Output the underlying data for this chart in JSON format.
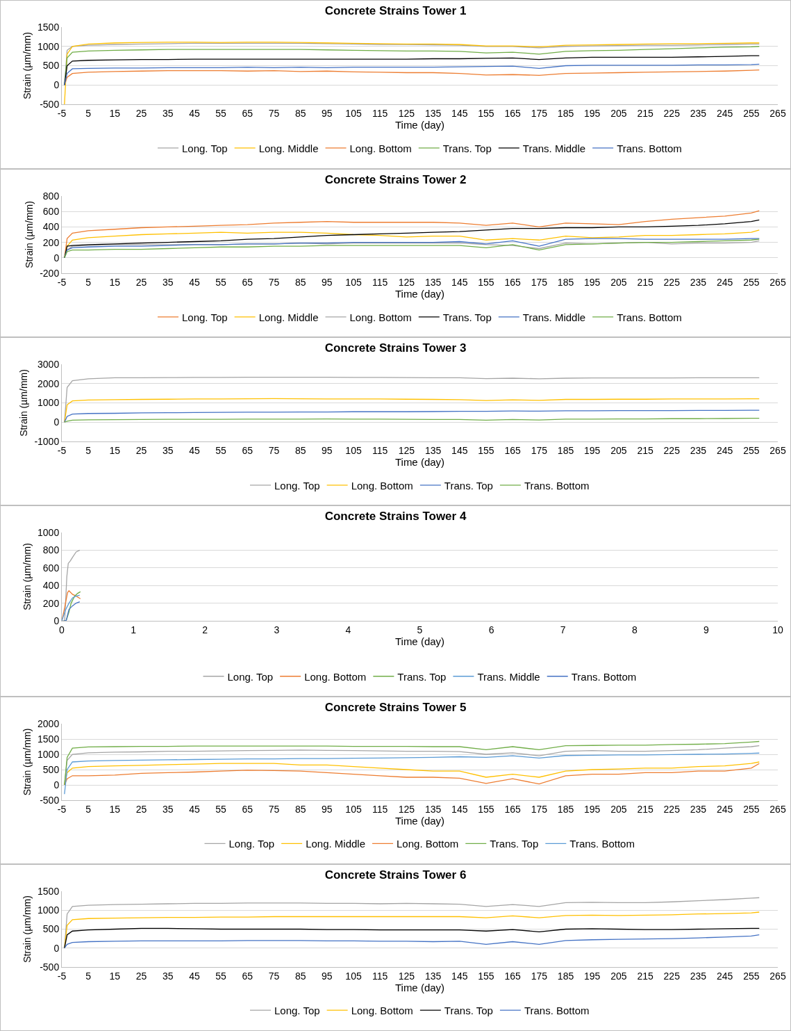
{
  "chart_data": [
    {
      "type": "line",
      "title": "Concrete Strains Tower 1",
      "xlabel": "Time (day)",
      "ylabel": "Strain (µm/mm)",
      "grid": "y",
      "legend": "bottom",
      "marker": "none",
      "line_style": "solid",
      "x": [
        -4,
        -3,
        -1,
        5,
        15,
        25,
        35,
        45,
        55,
        65,
        75,
        85,
        95,
        105,
        115,
        125,
        135,
        145,
        155,
        165,
        175,
        185,
        195,
        205,
        215,
        225,
        235,
        245,
        255,
        258
      ],
      "xlim": [
        -5,
        265
      ],
      "xticks": [
        -5,
        5,
        15,
        25,
        35,
        45,
        55,
        65,
        75,
        85,
        95,
        105,
        115,
        125,
        135,
        145,
        155,
        165,
        175,
        185,
        195,
        205,
        215,
        225,
        235,
        245,
        255,
        265
      ],
      "ylim": [
        -500,
        1500
      ],
      "yticks": [
        -500,
        0,
        500,
        1000,
        1500
      ],
      "series": [
        {
          "name": "Long. Top",
          "color": "#a5a5a5",
          "values": [
            0,
            900,
            1000,
            1030,
            1050,
            1060,
            1070,
            1080,
            1080,
            1080,
            1080,
            1080,
            1070,
            1060,
            1050,
            1050,
            1040,
            1030,
            1000,
            1000,
            960,
            1000,
            1010,
            1020,
            1030,
            1030,
            1040,
            1050,
            1060,
            1060
          ]
        },
        {
          "name": "Long. Middle",
          "color": "#ffc000",
          "values": [
            -500,
            800,
            1000,
            1060,
            1090,
            1100,
            1110,
            1110,
            1100,
            1110,
            1110,
            1100,
            1090,
            1080,
            1070,
            1060,
            1060,
            1050,
            1010,
            1010,
            990,
            1030,
            1040,
            1050,
            1060,
            1070,
            1070,
            1080,
            1090,
            1090
          ]
        },
        {
          "name": "Long. Bottom",
          "color": "#ed7d31",
          "values": [
            0,
            200,
            300,
            330,
            350,
            360,
            370,
            370,
            370,
            360,
            370,
            350,
            360,
            340,
            330,
            320,
            320,
            300,
            260,
            270,
            250,
            300,
            310,
            320,
            330,
            340,
            350,
            360,
            380,
            390
          ]
        },
        {
          "name": "Trans. Top",
          "color": "#70ad47",
          "values": [
            0,
            700,
            850,
            880,
            900,
            910,
            920,
            920,
            920,
            920,
            920,
            920,
            910,
            900,
            890,
            880,
            880,
            870,
            830,
            850,
            800,
            870,
            890,
            900,
            920,
            940,
            960,
            980,
            990,
            1000
          ]
        },
        {
          "name": "Trans. Middle",
          "color": "#000000",
          "values": [
            0,
            500,
            620,
            640,
            650,
            660,
            660,
            670,
            670,
            670,
            670,
            670,
            670,
            670,
            670,
            670,
            680,
            680,
            690,
            700,
            660,
            700,
            720,
            720,
            720,
            720,
            730,
            740,
            760,
            760
          ]
        },
        {
          "name": "Trans. Bottom",
          "color": "#4472c4",
          "values": [
            0,
            300,
            420,
            430,
            440,
            440,
            450,
            450,
            450,
            460,
            450,
            460,
            450,
            460,
            460,
            460,
            460,
            470,
            480,
            490,
            430,
            500,
            510,
            510,
            510,
            510,
            520,
            520,
            530,
            540
          ]
        }
      ]
    },
    {
      "type": "line",
      "title": "Concrete Strains Tower 2",
      "xlabel": "Time (day)",
      "ylabel": "Strain (µm/mm)",
      "grid": "y",
      "legend": "bottom",
      "marker": "none",
      "line_style": "solid",
      "x": [
        -4,
        -3,
        -1,
        5,
        15,
        25,
        35,
        45,
        55,
        65,
        75,
        85,
        95,
        105,
        115,
        125,
        135,
        145,
        155,
        165,
        175,
        185,
        195,
        205,
        215,
        225,
        235,
        245,
        255,
        258
      ],
      "xlim": [
        -5,
        265
      ],
      "xticks": [
        -5,
        5,
        15,
        25,
        35,
        45,
        55,
        65,
        75,
        85,
        95,
        105,
        115,
        125,
        135,
        145,
        155,
        165,
        175,
        185,
        195,
        205,
        215,
        225,
        235,
        245,
        255,
        265
      ],
      "ylim": [
        -200,
        800
      ],
      "yticks": [
        -200,
        0,
        200,
        400,
        600,
        800
      ],
      "series": [
        {
          "name": "Long. Top",
          "color": "#ed7d31",
          "values": [
            0,
            250,
            320,
            350,
            370,
            390,
            400,
            410,
            420,
            430,
            450,
            460,
            470,
            460,
            460,
            460,
            460,
            450,
            420,
            450,
            400,
            450,
            440,
            430,
            470,
            500,
            520,
            540,
            580,
            610
          ]
        },
        {
          "name": "Long. Middle",
          "color": "#ffc000",
          "values": [
            0,
            150,
            230,
            260,
            280,
            300,
            310,
            320,
            330,
            320,
            330,
            330,
            320,
            300,
            290,
            270,
            280,
            280,
            230,
            250,
            230,
            280,
            260,
            270,
            290,
            290,
            300,
            310,
            330,
            360
          ]
        },
        {
          "name": "Long. Bottom",
          "color": "#a5a5a5",
          "values": [
            0,
            100,
            150,
            160,
            170,
            170,
            170,
            170,
            170,
            180,
            180,
            190,
            180,
            190,
            190,
            190,
            190,
            190,
            170,
            160,
            120,
            190,
            180,
            190,
            200,
            180,
            190,
            190,
            200,
            220
          ]
        },
        {
          "name": "Trans. Top",
          "color": "#000000",
          "values": [
            0,
            150,
            160,
            170,
            180,
            190,
            200,
            210,
            220,
            240,
            250,
            270,
            290,
            300,
            310,
            320,
            330,
            340,
            360,
            380,
            380,
            390,
            390,
            400,
            400,
            410,
            420,
            440,
            470,
            490
          ]
        },
        {
          "name": "Trans. Middle",
          "color": "#4472c4",
          "values": [
            0,
            100,
            130,
            140,
            150,
            150,
            160,
            170,
            170,
            180,
            180,
            190,
            190,
            200,
            200,
            200,
            200,
            210,
            180,
            220,
            150,
            240,
            250,
            250,
            240,
            240,
            240,
            240,
            250,
            250
          ]
        },
        {
          "name": "Trans. Bottom",
          "color": "#70ad47",
          "values": [
            0,
            80,
            100,
            100,
            110,
            110,
            120,
            130,
            140,
            140,
            150,
            150,
            160,
            160,
            160,
            160,
            160,
            160,
            130,
            170,
            100,
            170,
            180,
            190,
            200,
            200,
            210,
            220,
            230,
            240
          ]
        }
      ]
    },
    {
      "type": "line",
      "title": "Concrete Strains Tower 3",
      "xlabel": "Time (day)",
      "ylabel": "Strain (µm/mm)",
      "grid": "y",
      "legend": "bottom",
      "marker": "none",
      "line_style": "solid",
      "x": [
        -4,
        -3,
        -1,
        5,
        15,
        25,
        35,
        45,
        55,
        65,
        75,
        85,
        95,
        105,
        115,
        125,
        135,
        145,
        155,
        165,
        175,
        185,
        195,
        205,
        215,
        225,
        235,
        245,
        255,
        258
      ],
      "xlim": [
        -5,
        265
      ],
      "xticks": [
        -5,
        5,
        15,
        25,
        35,
        45,
        55,
        65,
        75,
        85,
        95,
        105,
        115,
        125,
        135,
        145,
        155,
        165,
        175,
        185,
        195,
        205,
        215,
        225,
        235,
        245,
        255,
        265
      ],
      "ylim": [
        -1000,
        3000
      ],
      "yticks": [
        -1000,
        0,
        1000,
        2000,
        3000
      ],
      "series": [
        {
          "name": "Long. Top",
          "color": "#a5a5a5",
          "values": [
            0,
            1800,
            2150,
            2250,
            2300,
            2300,
            2310,
            2320,
            2320,
            2330,
            2330,
            2330,
            2330,
            2320,
            2320,
            2310,
            2300,
            2300,
            2260,
            2280,
            2250,
            2280,
            2290,
            2290,
            2290,
            2290,
            2300,
            2300,
            2300,
            2300
          ]
        },
        {
          "name": "Long. Bottom",
          "color": "#ffc000",
          "values": [
            0,
            900,
            1100,
            1150,
            1170,
            1180,
            1190,
            1200,
            1200,
            1210,
            1220,
            1210,
            1200,
            1200,
            1200,
            1190,
            1180,
            1170,
            1120,
            1160,
            1130,
            1180,
            1180,
            1190,
            1190,
            1200,
            1200,
            1200,
            1210,
            1210
          ]
        },
        {
          "name": "Trans. Top",
          "color": "#4472c4",
          "values": [
            0,
            300,
            420,
            450,
            460,
            480,
            490,
            500,
            510,
            520,
            520,
            530,
            530,
            540,
            540,
            540,
            550,
            560,
            560,
            580,
            570,
            590,
            590,
            600,
            600,
            600,
            610,
            610,
            620,
            620
          ]
        },
        {
          "name": "Trans. Bottom",
          "color": "#70ad47",
          "values": [
            0,
            50,
            100,
            120,
            130,
            140,
            150,
            150,
            150,
            160,
            160,
            160,
            170,
            160,
            160,
            150,
            140,
            140,
            100,
            140,
            110,
            160,
            160,
            170,
            170,
            180,
            180,
            190,
            200,
            200
          ]
        }
      ]
    },
    {
      "type": "line",
      "title": "Concrete Strains Tower 4",
      "xlabel": "Time (day)",
      "ylabel": "Strain (µm/mm)",
      "grid": "y",
      "legend": "bottom",
      "marker": "none",
      "line_style": "solid",
      "xlim": [
        0,
        10
      ],
      "xticks": [
        0,
        1,
        2,
        3,
        4,
        5,
        6,
        7,
        8,
        9,
        10
      ],
      "ylim": [
        0,
        1000
      ],
      "yticks": [
        0,
        200,
        400,
        600,
        800,
        1000
      ],
      "series": [
        {
          "name": "Long. Top",
          "color": "#a5a5a5",
          "x": [
            0,
            0.04,
            0.07,
            0.09,
            0.12,
            0.15,
            0.2,
            0.25
          ],
          "values": [
            0,
            0,
            500,
            650,
            680,
            720,
            780,
            800
          ]
        },
        {
          "name": "Long. Bottom",
          "color": "#ed7d31",
          "x": [
            0,
            0.04,
            0.08,
            0.1,
            0.15,
            0.2,
            0.26
          ],
          "values": [
            0,
            150,
            320,
            340,
            300,
            280,
            250
          ]
        },
        {
          "name": "Trans. Top",
          "color": "#70ad47",
          "x": [
            0.03,
            0.06,
            0.1,
            0.13,
            0.18,
            0.22,
            0.26
          ],
          "values": [
            0,
            0,
            100,
            200,
            280,
            310,
            330
          ]
        },
        {
          "name": "Trans. Middle",
          "color": "#5b9bd5",
          "x": [
            0,
            0.05,
            0.1,
            0.15,
            0.2,
            0.25
          ],
          "values": [
            0,
            120,
            200,
            260,
            280,
            290
          ]
        },
        {
          "name": "Trans. Bottom",
          "color": "#4472c4",
          "x": [
            0.03,
            0.06,
            0.1,
            0.15,
            0.2,
            0.25
          ],
          "values": [
            0,
            0,
            130,
            170,
            200,
            215
          ]
        }
      ]
    },
    {
      "type": "line",
      "title": "Concrete Strains Tower 5",
      "xlabel": "Time (day)",
      "ylabel": "Strain (µm/mm)",
      "grid": "y",
      "legend": "bottom",
      "marker": "none",
      "line_style": "solid",
      "x": [
        -4,
        -3,
        -1,
        5,
        15,
        25,
        35,
        45,
        55,
        65,
        75,
        85,
        95,
        105,
        115,
        125,
        135,
        145,
        155,
        165,
        175,
        185,
        195,
        205,
        215,
        225,
        235,
        245,
        255,
        258
      ],
      "xlim": [
        -5,
        265
      ],
      "xticks": [
        -5,
        5,
        15,
        25,
        35,
        45,
        55,
        65,
        75,
        85,
        95,
        105,
        115,
        125,
        135,
        145,
        155,
        165,
        175,
        185,
        195,
        205,
        215,
        225,
        235,
        245,
        255,
        265
      ],
      "ylim": [
        -500,
        2000
      ],
      "yticks": [
        -500,
        0,
        500,
        1000,
        1500,
        2000
      ],
      "series": [
        {
          "name": "Long. Top",
          "color": "#a5a5a5",
          "values": [
            0,
            800,
            1000,
            1050,
            1070,
            1080,
            1100,
            1100,
            1110,
            1120,
            1130,
            1140,
            1130,
            1120,
            1110,
            1100,
            1100,
            1090,
            1000,
            1050,
            950,
            1100,
            1120,
            1100,
            1100,
            1120,
            1150,
            1200,
            1250,
            1280
          ]
        },
        {
          "name": "Long. Middle",
          "color": "#ffc000",
          "values": [
            0,
            400,
            550,
            600,
            620,
            640,
            660,
            680,
            700,
            700,
            700,
            650,
            650,
            600,
            550,
            500,
            450,
            450,
            250,
            350,
            250,
            450,
            500,
            520,
            550,
            550,
            600,
            620,
            700,
            750
          ]
        },
        {
          "name": "Long. Bottom",
          "color": "#ed7d31",
          "values": [
            0,
            200,
            300,
            300,
            320,
            380,
            400,
            420,
            450,
            480,
            470,
            450,
            400,
            350,
            300,
            250,
            250,
            220,
            50,
            200,
            30,
            300,
            350,
            350,
            400,
            400,
            450,
            450,
            550,
            700
          ]
        },
        {
          "name": "Trans. Top",
          "color": "#70ad47",
          "values": [
            0,
            900,
            1200,
            1240,
            1250,
            1260,
            1260,
            1270,
            1270,
            1270,
            1270,
            1270,
            1270,
            1260,
            1260,
            1260,
            1250,
            1250,
            1150,
            1250,
            1150,
            1280,
            1290,
            1300,
            1300,
            1320,
            1330,
            1350,
            1400,
            1420
          ]
        },
        {
          "name": "Trans. Bottom",
          "color": "#5b9bd5",
          "values": [
            -300,
            500,
            750,
            780,
            800,
            810,
            820,
            830,
            840,
            850,
            850,
            860,
            860,
            870,
            880,
            890,
            900,
            920,
            900,
            950,
            880,
            960,
            970,
            980,
            980,
            990,
            1000,
            1010,
            1030,
            1040
          ]
        }
      ]
    },
    {
      "type": "line",
      "title": "Concrete Strains Tower 6",
      "xlabel": "Time (day)",
      "ylabel": "Strain (µm/mm)",
      "grid": "y",
      "legend": "bottom",
      "marker": "none",
      "line_style": "solid",
      "x": [
        -4,
        -3,
        -1,
        5,
        15,
        25,
        35,
        45,
        55,
        65,
        75,
        85,
        95,
        105,
        115,
        125,
        135,
        145,
        155,
        165,
        175,
        185,
        195,
        205,
        215,
        225,
        235,
        245,
        255,
        258
      ],
      "xlim": [
        -5,
        265
      ],
      "xticks": [
        -5,
        5,
        15,
        25,
        35,
        45,
        55,
        65,
        75,
        85,
        95,
        105,
        115,
        125,
        135,
        145,
        155,
        165,
        175,
        185,
        195,
        205,
        215,
        225,
        235,
        245,
        255,
        265
      ],
      "ylim": [
        -500,
        1500
      ],
      "yticks": [
        -500,
        0,
        500,
        1000,
        1500
      ],
      "series": [
        {
          "name": "Long. Top",
          "color": "#a5a5a5",
          "values": [
            0,
            900,
            1100,
            1130,
            1150,
            1160,
            1170,
            1180,
            1180,
            1190,
            1190,
            1190,
            1180,
            1180,
            1170,
            1180,
            1170,
            1160,
            1100,
            1150,
            1100,
            1200,
            1210,
            1200,
            1200,
            1220,
            1250,
            1280,
            1320,
            1330
          ]
        },
        {
          "name": "Long. Bottom",
          "color": "#ffc000",
          "values": [
            0,
            600,
            750,
            780,
            790,
            800,
            810,
            810,
            820,
            820,
            830,
            830,
            830,
            830,
            830,
            830,
            830,
            830,
            800,
            850,
            800,
            860,
            870,
            860,
            870,
            880,
            900,
            910,
            930,
            950
          ]
        },
        {
          "name": "Trans. Top",
          "color": "#000000",
          "values": [
            0,
            350,
            450,
            480,
            500,
            520,
            520,
            510,
            500,
            500,
            500,
            500,
            490,
            490,
            480,
            480,
            480,
            480,
            450,
            490,
            430,
            500,
            510,
            500,
            490,
            490,
            500,
            510,
            520,
            520
          ]
        },
        {
          "name": "Trans. Bottom",
          "color": "#4472c4",
          "values": [
            0,
            100,
            150,
            170,
            180,
            190,
            190,
            190,
            190,
            200,
            200,
            200,
            190,
            190,
            180,
            180,
            170,
            180,
            100,
            170,
            100,
            200,
            220,
            230,
            240,
            250,
            270,
            290,
            320,
            350
          ]
        }
      ]
    }
  ]
}
